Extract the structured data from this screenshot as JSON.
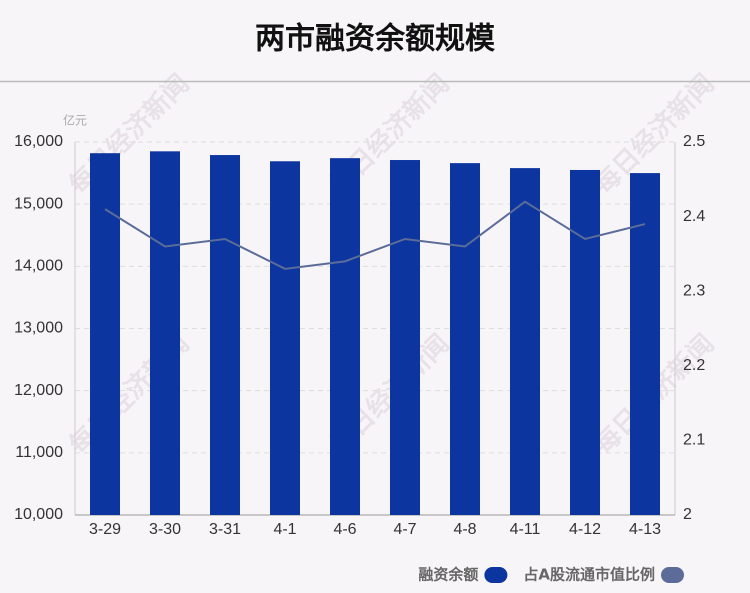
{
  "chart_data": {
    "type": "bar",
    "title": "两市融资余额规模",
    "y_unit": "亿元",
    "watermark": "每日经济新闻",
    "categories": [
      "3-29",
      "3-30",
      "3-31",
      "4-1",
      "4-6",
      "4-7",
      "4-8",
      "4-11",
      "4-12",
      "4-13"
    ],
    "series": [
      {
        "name": "融资余额",
        "type": "bar",
        "color": "#0c35a0",
        "values": [
          15820,
          15850,
          15790,
          15690,
          15740,
          15710,
          15660,
          15580,
          15550,
          15500
        ]
      },
      {
        "name": "占A股流通市值比例",
        "type": "line",
        "axis": "y2",
        "color": "#5b6c98",
        "values": [
          2.41,
          2.36,
          2.37,
          2.33,
          2.34,
          2.37,
          2.36,
          2.42,
          2.37,
          2.39
        ]
      }
    ],
    "ylim": [
      10000,
      16000
    ],
    "yticks": [
      {
        "value": 10000,
        "label": "10,000"
      },
      {
        "value": 11000,
        "label": "11,000"
      },
      {
        "value": 12000,
        "label": "12,000"
      },
      {
        "value": 13000,
        "label": "13,000"
      },
      {
        "value": 14000,
        "label": "14,000"
      },
      {
        "value": 15000,
        "label": "15,000"
      },
      {
        "value": 16000,
        "label": "16,000"
      }
    ],
    "y2lim": [
      2,
      2.5
    ],
    "y2ticks": [
      2,
      2.1,
      2.2,
      2.3,
      2.4,
      2.5
    ],
    "grid": true,
    "legend": "bottom-right"
  }
}
